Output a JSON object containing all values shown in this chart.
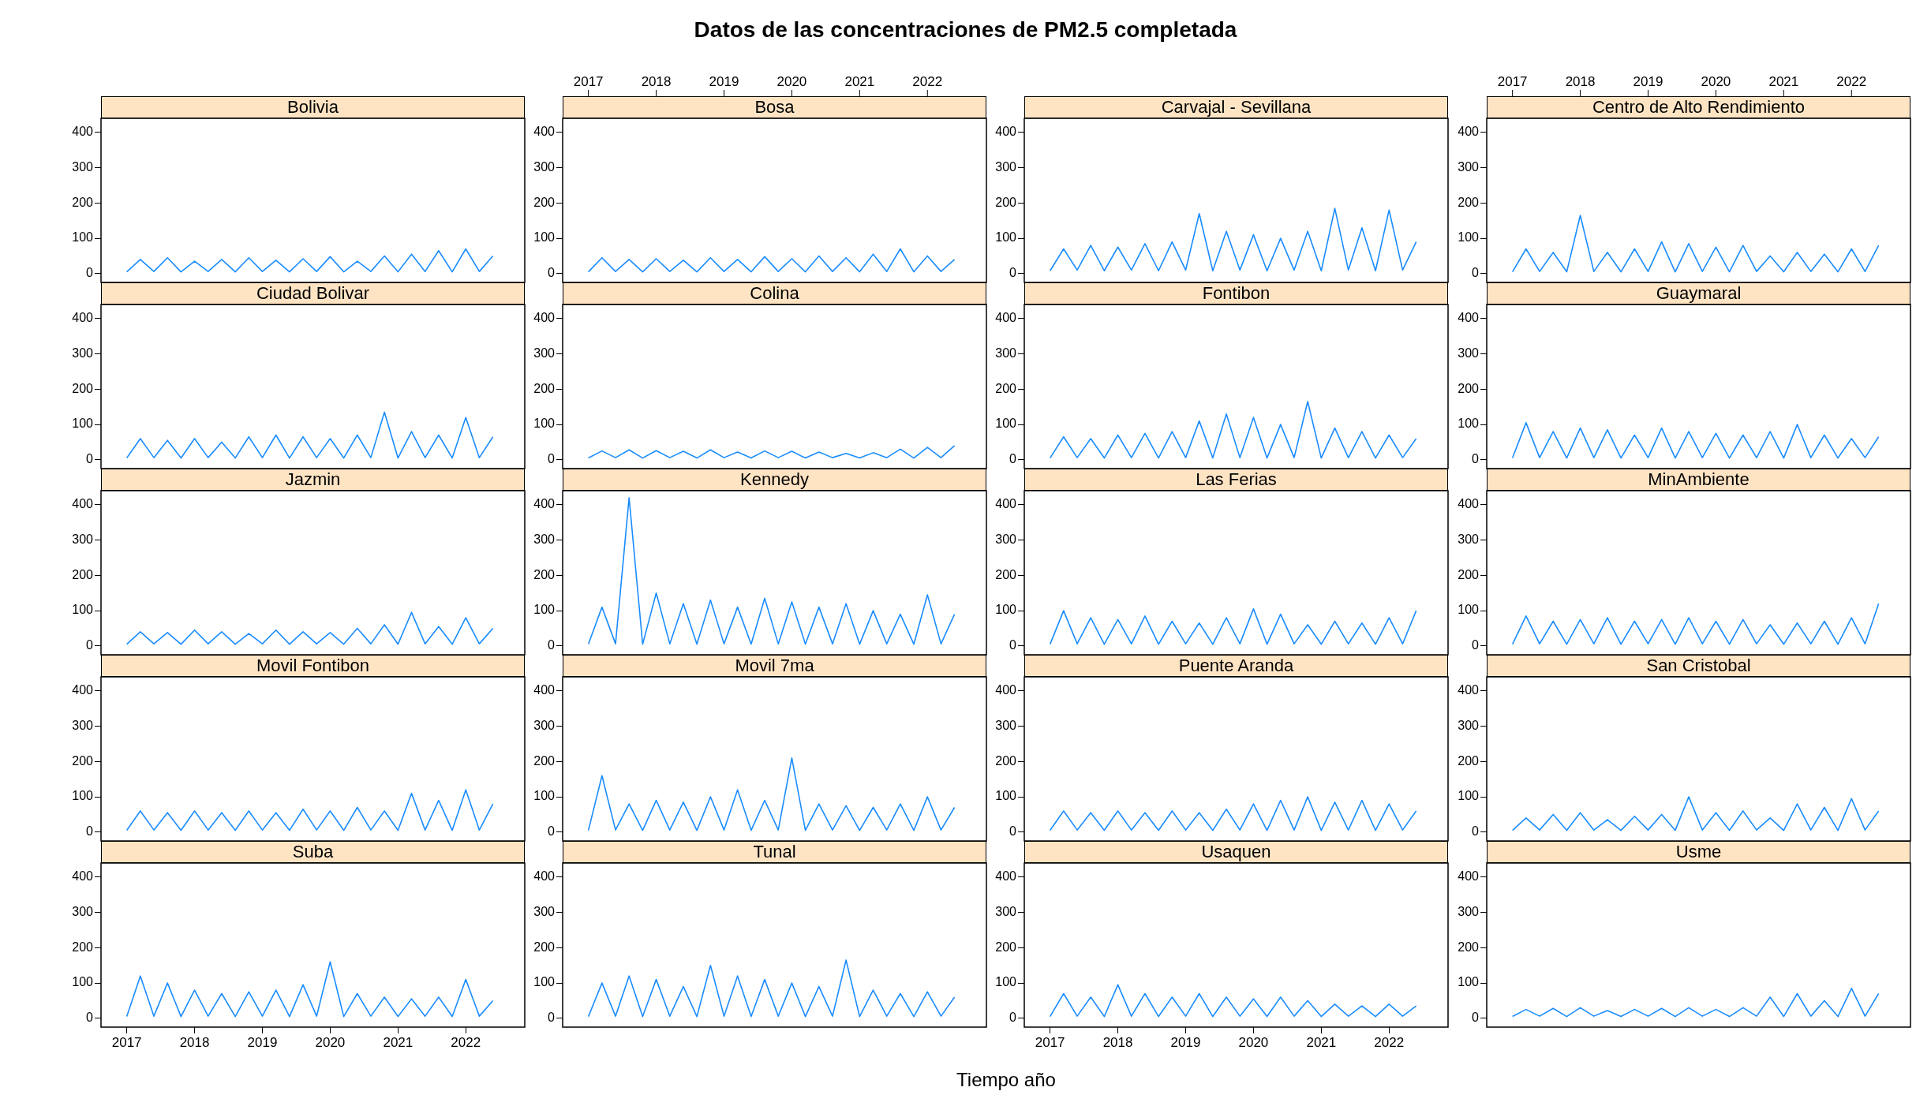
{
  "chart_data": [
    {
      "type": "line",
      "title": "Bolivia",
      "annotations": [
        "Datos de las concentraciones de PM2.5 completada",
        "Tiempo año"
      ],
      "color": "#1a8cff",
      "xlim": [
        2016.62,
        2022.87
      ],
      "ylim": [
        -25,
        440
      ],
      "yticks": [
        0,
        100,
        200,
        300,
        400
      ],
      "x": [
        2017,
        2017.2,
        2017.4,
        2017.6,
        2017.8,
        2018,
        2018.2,
        2018.4,
        2018.6,
        2018.8,
        2019,
        2019.2,
        2019.4,
        2019.6,
        2019.8,
        2020,
        2020.2,
        2020.4,
        2020.6,
        2020.8,
        2021,
        2021.2,
        2021.4,
        2021.6,
        2021.8,
        2022,
        2022.2,
        2022.4
      ],
      "values": [
        5,
        40,
        6,
        45,
        5,
        35,
        6,
        40,
        5,
        45,
        6,
        38,
        5,
        42,
        6,
        48,
        5,
        35,
        6,
        50,
        5,
        55,
        6,
        65,
        5,
        70,
        6,
        50
      ]
    },
    {
      "type": "line",
      "title": "Bosa",
      "color": "#1a8cff",
      "xlim": [
        2016.62,
        2022.87
      ],
      "x2lim": [
        2016.62,
        2022.87
      ],
      "x2ticks": [
        2017,
        2018,
        2019,
        2020,
        2021,
        2022
      ],
      "ylim": [
        -25,
        440
      ],
      "yticks": [
        0,
        100,
        200,
        300,
        400
      ],
      "x": [
        2017,
        2017.2,
        2017.4,
        2017.6,
        2017.8,
        2018,
        2018.2,
        2018.4,
        2018.6,
        2018.8,
        2019,
        2019.2,
        2019.4,
        2019.6,
        2019.8,
        2020,
        2020.2,
        2020.4,
        2020.6,
        2020.8,
        2021,
        2021.2,
        2021.4,
        2021.6,
        2021.8,
        2022,
        2022.2,
        2022.4
      ],
      "values": [
        5,
        45,
        6,
        40,
        5,
        42,
        6,
        38,
        5,
        45,
        6,
        40,
        5,
        48,
        6,
        42,
        5,
        50,
        6,
        45,
        5,
        55,
        6,
        70,
        5,
        50,
        6,
        40
      ]
    },
    {
      "type": "line",
      "title": "Carvajal - Sevillana",
      "color": "#1a8cff",
      "xlim": [
        2016.62,
        2022.87
      ],
      "ylim": [
        -25,
        440
      ],
      "yticks": [
        0,
        100,
        200,
        300,
        400
      ],
      "x": [
        2017,
        2017.2,
        2017.4,
        2017.6,
        2017.8,
        2018,
        2018.2,
        2018.4,
        2018.6,
        2018.8,
        2019,
        2019.2,
        2019.4,
        2019.6,
        2019.8,
        2020,
        2020.2,
        2020.4,
        2020.6,
        2020.8,
        2021,
        2021.2,
        2021.4,
        2021.6,
        2021.8,
        2022,
        2022.2,
        2022.4
      ],
      "values": [
        8,
        70,
        10,
        80,
        8,
        75,
        10,
        85,
        8,
        90,
        10,
        170,
        8,
        120,
        10,
        110,
        8,
        100,
        10,
        120,
        8,
        185,
        10,
        130,
        8,
        180,
        10,
        90
      ]
    },
    {
      "type": "line",
      "title": "Centro de Alto Rendimiento",
      "color": "#1a8cff",
      "xlim": [
        2016.62,
        2022.87
      ],
      "x2lim": [
        2016.62,
        2022.87
      ],
      "x2ticks": [
        2017,
        2018,
        2019,
        2020,
        2021,
        2022
      ],
      "ylim": [
        -25,
        440
      ],
      "yticks": [
        0,
        100,
        200,
        300,
        400
      ],
      "x": [
        2017,
        2017.2,
        2017.4,
        2017.6,
        2017.8,
        2018,
        2018.2,
        2018.4,
        2018.6,
        2018.8,
        2019,
        2019.2,
        2019.4,
        2019.6,
        2019.8,
        2020,
        2020.2,
        2020.4,
        2020.6,
        2020.8,
        2021,
        2021.2,
        2021.4,
        2021.6,
        2021.8,
        2022,
        2022.2,
        2022.4
      ],
      "values": [
        5,
        70,
        6,
        60,
        5,
        165,
        6,
        60,
        5,
        70,
        6,
        90,
        5,
        85,
        6,
        75,
        5,
        80,
        6,
        50,
        5,
        60,
        6,
        55,
        5,
        70,
        6,
        80
      ]
    },
    {
      "type": "line",
      "title": "Ciudad Bolivar",
      "color": "#1a8cff",
      "xlim": [
        2016.62,
        2022.87
      ],
      "ylim": [
        -25,
        440
      ],
      "yticks": [
        0,
        100,
        200,
        300,
        400
      ],
      "x": [
        2017,
        2017.2,
        2017.4,
        2017.6,
        2017.8,
        2018,
        2018.2,
        2018.4,
        2018.6,
        2018.8,
        2019,
        2019.2,
        2019.4,
        2019.6,
        2019.8,
        2020,
        2020.2,
        2020.4,
        2020.6,
        2020.8,
        2021,
        2021.2,
        2021.4,
        2021.6,
        2021.8,
        2022,
        2022.2,
        2022.4
      ],
      "values": [
        5,
        60,
        6,
        55,
        5,
        60,
        6,
        50,
        5,
        65,
        6,
        70,
        5,
        65,
        6,
        60,
        5,
        70,
        6,
        135,
        5,
        80,
        6,
        70,
        5,
        120,
        6,
        65
      ]
    },
    {
      "type": "line",
      "title": "Colina",
      "color": "#1a8cff",
      "xlim": [
        2016.62,
        2022.87
      ],
      "ylim": [
        -25,
        440
      ],
      "yticks": [
        0,
        100,
        200,
        300,
        400
      ],
      "x": [
        2017,
        2017.2,
        2017.4,
        2017.6,
        2017.8,
        2018,
        2018.2,
        2018.4,
        2018.6,
        2018.8,
        2019,
        2019.2,
        2019.4,
        2019.6,
        2019.8,
        2020,
        2020.2,
        2020.4,
        2020.6,
        2020.8,
        2021,
        2021.2,
        2021.4,
        2021.6,
        2021.8,
        2022,
        2022.2,
        2022.4
      ],
      "values": [
        5,
        25,
        6,
        28,
        5,
        26,
        6,
        24,
        5,
        28,
        6,
        22,
        5,
        25,
        6,
        24,
        5,
        22,
        6,
        18,
        5,
        20,
        6,
        30,
        5,
        35,
        6,
        40
      ]
    },
    {
      "type": "line",
      "title": "Fontibon",
      "color": "#1a8cff",
      "xlim": [
        2016.62,
        2022.87
      ],
      "ylim": [
        -25,
        440
      ],
      "yticks": [
        0,
        100,
        200,
        300,
        400
      ],
      "x": [
        2017,
        2017.2,
        2017.4,
        2017.6,
        2017.8,
        2018,
        2018.2,
        2018.4,
        2018.6,
        2018.8,
        2019,
        2019.2,
        2019.4,
        2019.6,
        2019.8,
        2020,
        2020.2,
        2020.4,
        2020.6,
        2020.8,
        2021,
        2021.2,
        2021.4,
        2021.6,
        2021.8,
        2022,
        2022.2,
        2022.4
      ],
      "values": [
        5,
        65,
        6,
        60,
        5,
        70,
        6,
        75,
        5,
        80,
        6,
        110,
        5,
        130,
        6,
        120,
        5,
        100,
        6,
        165,
        5,
        90,
        6,
        80,
        5,
        70,
        6,
        60
      ]
    },
    {
      "type": "line",
      "title": "Guaymaral",
      "color": "#1a8cff",
      "xlim": [
        2016.62,
        2022.87
      ],
      "ylim": [
        -25,
        440
      ],
      "yticks": [
        0,
        100,
        200,
        300,
        400
      ],
      "x": [
        2017,
        2017.2,
        2017.4,
        2017.6,
        2017.8,
        2018,
        2018.2,
        2018.4,
        2018.6,
        2018.8,
        2019,
        2019.2,
        2019.4,
        2019.6,
        2019.8,
        2020,
        2020.2,
        2020.4,
        2020.6,
        2020.8,
        2021,
        2021.2,
        2021.4,
        2021.6,
        2021.8,
        2022,
        2022.2,
        2022.4
      ],
      "values": [
        5,
        105,
        6,
        80,
        5,
        90,
        6,
        85,
        5,
        70,
        6,
        90,
        5,
        80,
        6,
        75,
        5,
        70,
        6,
        80,
        5,
        100,
        6,
        70,
        5,
        60,
        6,
        65
      ]
    },
    {
      "type": "line",
      "title": "Jazmin",
      "color": "#1a8cff",
      "xlim": [
        2016.62,
        2022.87
      ],
      "ylim": [
        -25,
        440
      ],
      "yticks": [
        0,
        100,
        200,
        300,
        400
      ],
      "x": [
        2017,
        2017.2,
        2017.4,
        2017.6,
        2017.8,
        2018,
        2018.2,
        2018.4,
        2018.6,
        2018.8,
        2019,
        2019.2,
        2019.4,
        2019.6,
        2019.8,
        2020,
        2020.2,
        2020.4,
        2020.6,
        2020.8,
        2021,
        2021.2,
        2021.4,
        2021.6,
        2021.8,
        2022,
        2022.2,
        2022.4
      ],
      "values": [
        5,
        40,
        6,
        38,
        5,
        45,
        6,
        40,
        5,
        35,
        6,
        45,
        5,
        40,
        6,
        38,
        5,
        50,
        6,
        60,
        5,
        95,
        6,
        55,
        5,
        80,
        6,
        50
      ]
    },
    {
      "type": "line",
      "title": "Kennedy",
      "color": "#1a8cff",
      "xlim": [
        2016.62,
        2022.87
      ],
      "ylim": [
        -25,
        440
      ],
      "yticks": [
        0,
        100,
        200,
        300,
        400
      ],
      "x": [
        2017,
        2017.2,
        2017.4,
        2017.6,
        2017.8,
        2018,
        2018.2,
        2018.4,
        2018.6,
        2018.8,
        2019,
        2019.2,
        2019.4,
        2019.6,
        2019.8,
        2020,
        2020.2,
        2020.4,
        2020.6,
        2020.8,
        2021,
        2021.2,
        2021.4,
        2021.6,
        2021.8,
        2022,
        2022.2,
        2022.4
      ],
      "values": [
        5,
        110,
        6,
        420,
        5,
        150,
        6,
        120,
        5,
        130,
        6,
        110,
        5,
        135,
        6,
        125,
        5,
        110,
        6,
        120,
        5,
        100,
        6,
        90,
        5,
        145,
        6,
        90
      ]
    },
    {
      "type": "line",
      "title": "Las Ferias",
      "color": "#1a8cff",
      "xlim": [
        2016.62,
        2022.87
      ],
      "ylim": [
        -25,
        440
      ],
      "yticks": [
        0,
        100,
        200,
        300,
        400
      ],
      "x": [
        2017,
        2017.2,
        2017.4,
        2017.6,
        2017.8,
        2018,
        2018.2,
        2018.4,
        2018.6,
        2018.8,
        2019,
        2019.2,
        2019.4,
        2019.6,
        2019.8,
        2020,
        2020.2,
        2020.4,
        2020.6,
        2020.8,
        2021,
        2021.2,
        2021.4,
        2021.6,
        2021.8,
        2022,
        2022.2,
        2022.4
      ],
      "values": [
        5,
        100,
        6,
        80,
        5,
        75,
        6,
        85,
        5,
        70,
        6,
        65,
        5,
        80,
        6,
        105,
        5,
        90,
        6,
        60,
        5,
        70,
        6,
        65,
        5,
        80,
        6,
        100
      ]
    },
    {
      "type": "line",
      "title": "MinAmbiente",
      "color": "#1a8cff",
      "xlim": [
        2016.62,
        2022.87
      ],
      "ylim": [
        -25,
        440
      ],
      "yticks": [
        0,
        100,
        200,
        300,
        400
      ],
      "x": [
        2017,
        2017.2,
        2017.4,
        2017.6,
        2017.8,
        2018,
        2018.2,
        2018.4,
        2018.6,
        2018.8,
        2019,
        2019.2,
        2019.4,
        2019.6,
        2019.8,
        2020,
        2020.2,
        2020.4,
        2020.6,
        2020.8,
        2021,
        2021.2,
        2021.4,
        2021.6,
        2021.8,
        2022,
        2022.2,
        2022.4
      ],
      "values": [
        5,
        85,
        6,
        70,
        5,
        75,
        6,
        80,
        5,
        70,
        6,
        75,
        5,
        80,
        6,
        70,
        5,
        75,
        6,
        60,
        5,
        65,
        6,
        70,
        5,
        80,
        6,
        120
      ]
    },
    {
      "type": "line",
      "title": "Movil Fontibon",
      "color": "#1a8cff",
      "xlim": [
        2016.62,
        2022.87
      ],
      "ylim": [
        -25,
        440
      ],
      "yticks": [
        0,
        100,
        200,
        300,
        400
      ],
      "x": [
        2017,
        2017.2,
        2017.4,
        2017.6,
        2017.8,
        2018,
        2018.2,
        2018.4,
        2018.6,
        2018.8,
        2019,
        2019.2,
        2019.4,
        2019.6,
        2019.8,
        2020,
        2020.2,
        2020.4,
        2020.6,
        2020.8,
        2021,
        2021.2,
        2021.4,
        2021.6,
        2021.8,
        2022,
        2022.2,
        2022.4
      ],
      "values": [
        5,
        60,
        6,
        55,
        5,
        60,
        6,
        55,
        5,
        60,
        6,
        55,
        5,
        65,
        6,
        60,
        5,
        70,
        6,
        60,
        5,
        110,
        6,
        90,
        5,
        120,
        6,
        80
      ]
    },
    {
      "type": "line",
      "title": "Movil 7ma",
      "color": "#1a8cff",
      "xlim": [
        2016.62,
        2022.87
      ],
      "ylim": [
        -25,
        440
      ],
      "yticks": [
        0,
        100,
        200,
        300,
        400
      ],
      "x": [
        2017,
        2017.2,
        2017.4,
        2017.6,
        2017.8,
        2018,
        2018.2,
        2018.4,
        2018.6,
        2018.8,
        2019,
        2019.2,
        2019.4,
        2019.6,
        2019.8,
        2020,
        2020.2,
        2020.4,
        2020.6,
        2020.8,
        2021,
        2021.2,
        2021.4,
        2021.6,
        2021.8,
        2022,
        2022.2,
        2022.4
      ],
      "values": [
        5,
        160,
        6,
        80,
        5,
        90,
        6,
        85,
        5,
        100,
        6,
        120,
        5,
        90,
        6,
        210,
        5,
        80,
        6,
        75,
        5,
        70,
        6,
        80,
        5,
        100,
        6,
        70
      ]
    },
    {
      "type": "line",
      "title": "Puente Aranda",
      "color": "#1a8cff",
      "xlim": [
        2016.62,
        2022.87
      ],
      "ylim": [
        -25,
        440
      ],
      "yticks": [
        0,
        100,
        200,
        300,
        400
      ],
      "x": [
        2017,
        2017.2,
        2017.4,
        2017.6,
        2017.8,
        2018,
        2018.2,
        2018.4,
        2018.6,
        2018.8,
        2019,
        2019.2,
        2019.4,
        2019.6,
        2019.8,
        2020,
        2020.2,
        2020.4,
        2020.6,
        2020.8,
        2021,
        2021.2,
        2021.4,
        2021.6,
        2021.8,
        2022,
        2022.2,
        2022.4
      ],
      "values": [
        5,
        60,
        6,
        55,
        5,
        60,
        6,
        55,
        5,
        60,
        6,
        55,
        5,
        65,
        6,
        80,
        5,
        90,
        6,
        100,
        5,
        85,
        6,
        90,
        5,
        80,
        6,
        60
      ]
    },
    {
      "type": "line",
      "title": "San Cristobal",
      "color": "#1a8cff",
      "xlim": [
        2016.62,
        2022.87
      ],
      "ylim": [
        -25,
        440
      ],
      "yticks": [
        0,
        100,
        200,
        300,
        400
      ],
      "x": [
        2017,
        2017.2,
        2017.4,
        2017.6,
        2017.8,
        2018,
        2018.2,
        2018.4,
        2018.6,
        2018.8,
        2019,
        2019.2,
        2019.4,
        2019.6,
        2019.8,
        2020,
        2020.2,
        2020.4,
        2020.6,
        2020.8,
        2021,
        2021.2,
        2021.4,
        2021.6,
        2021.8,
        2022,
        2022.2,
        2022.4
      ],
      "values": [
        5,
        40,
        6,
        50,
        5,
        55,
        6,
        35,
        5,
        45,
        6,
        50,
        5,
        100,
        6,
        55,
        5,
        60,
        6,
        40,
        5,
        80,
        6,
        70,
        5,
        95,
        6,
        60
      ]
    },
    {
      "type": "line",
      "title": "Suba",
      "color": "#1a8cff",
      "xlim": [
        2016.62,
        2022.87
      ],
      "xticks": [
        2017,
        2018,
        2019,
        2020,
        2021,
        2022
      ],
      "ylim": [
        -25,
        440
      ],
      "yticks": [
        0,
        100,
        200,
        300,
        400
      ],
      "x": [
        2017,
        2017.2,
        2017.4,
        2017.6,
        2017.8,
        2018,
        2018.2,
        2018.4,
        2018.6,
        2018.8,
        2019,
        2019.2,
        2019.4,
        2019.6,
        2019.8,
        2020,
        2020.2,
        2020.4,
        2020.6,
        2020.8,
        2021,
        2021.2,
        2021.4,
        2021.6,
        2021.8,
        2022,
        2022.2,
        2022.4
      ],
      "values": [
        5,
        120,
        6,
        100,
        5,
        80,
        6,
        70,
        5,
        75,
        6,
        80,
        5,
        95,
        6,
        160,
        5,
        70,
        6,
        60,
        5,
        55,
        6,
        60,
        5,
        110,
        6,
        50
      ]
    },
    {
      "type": "line",
      "title": "Tunal",
      "color": "#1a8cff",
      "xlim": [
        2016.62,
        2022.87
      ],
      "ylim": [
        -25,
        440
      ],
      "yticks": [
        0,
        100,
        200,
        300,
        400
      ],
      "x": [
        2017,
        2017.2,
        2017.4,
        2017.6,
        2017.8,
        2018,
        2018.2,
        2018.4,
        2018.6,
        2018.8,
        2019,
        2019.2,
        2019.4,
        2019.6,
        2019.8,
        2020,
        2020.2,
        2020.4,
        2020.6,
        2020.8,
        2021,
        2021.2,
        2021.4,
        2021.6,
        2021.8,
        2022,
        2022.2,
        2022.4
      ],
      "values": [
        5,
        100,
        6,
        120,
        5,
        110,
        6,
        90,
        5,
        150,
        6,
        120,
        5,
        110,
        6,
        100,
        5,
        90,
        6,
        165,
        5,
        80,
        6,
        70,
        5,
        75,
        6,
        60
      ]
    },
    {
      "type": "line",
      "title": "Usaquen",
      "color": "#1a8cff",
      "xlim": [
        2016.62,
        2022.87
      ],
      "xticks": [
        2017,
        2018,
        2019,
        2020,
        2021,
        2022
      ],
      "ylim": [
        -25,
        440
      ],
      "yticks": [
        0,
        100,
        200,
        300,
        400
      ],
      "x": [
        2017,
        2017.2,
        2017.4,
        2017.6,
        2017.8,
        2018,
        2018.2,
        2018.4,
        2018.6,
        2018.8,
        2019,
        2019.2,
        2019.4,
        2019.6,
        2019.8,
        2020,
        2020.2,
        2020.4,
        2020.6,
        2020.8,
        2021,
        2021.2,
        2021.4,
        2021.6,
        2021.8,
        2022,
        2022.2,
        2022.4
      ],
      "values": [
        5,
        70,
        6,
        60,
        5,
        95,
        6,
        70,
        5,
        60,
        6,
        70,
        5,
        60,
        6,
        55,
        5,
        60,
        6,
        50,
        5,
        40,
        6,
        35,
        5,
        40,
        6,
        35
      ]
    },
    {
      "type": "line",
      "title": "Usme",
      "color": "#1a8cff",
      "xlim": [
        2016.62,
        2022.87
      ],
      "ylim": [
        -25,
        440
      ],
      "yticks": [
        0,
        100,
        200,
        300,
        400
      ],
      "x": [
        2017,
        2017.2,
        2017.4,
        2017.6,
        2017.8,
        2018,
        2018.2,
        2018.4,
        2018.6,
        2018.8,
        2019,
        2019.2,
        2019.4,
        2019.6,
        2019.8,
        2020,
        2020.2,
        2020.4,
        2020.6,
        2020.8,
        2021,
        2021.2,
        2021.4,
        2021.6,
        2021.8,
        2022,
        2022.2,
        2022.4
      ],
      "values": [
        5,
        25,
        6,
        28,
        5,
        30,
        6,
        22,
        5,
        25,
        6,
        28,
        5,
        30,
        6,
        25,
        5,
        30,
        6,
        60,
        5,
        70,
        6,
        50,
        5,
        85,
        6,
        70
      ]
    }
  ]
}
